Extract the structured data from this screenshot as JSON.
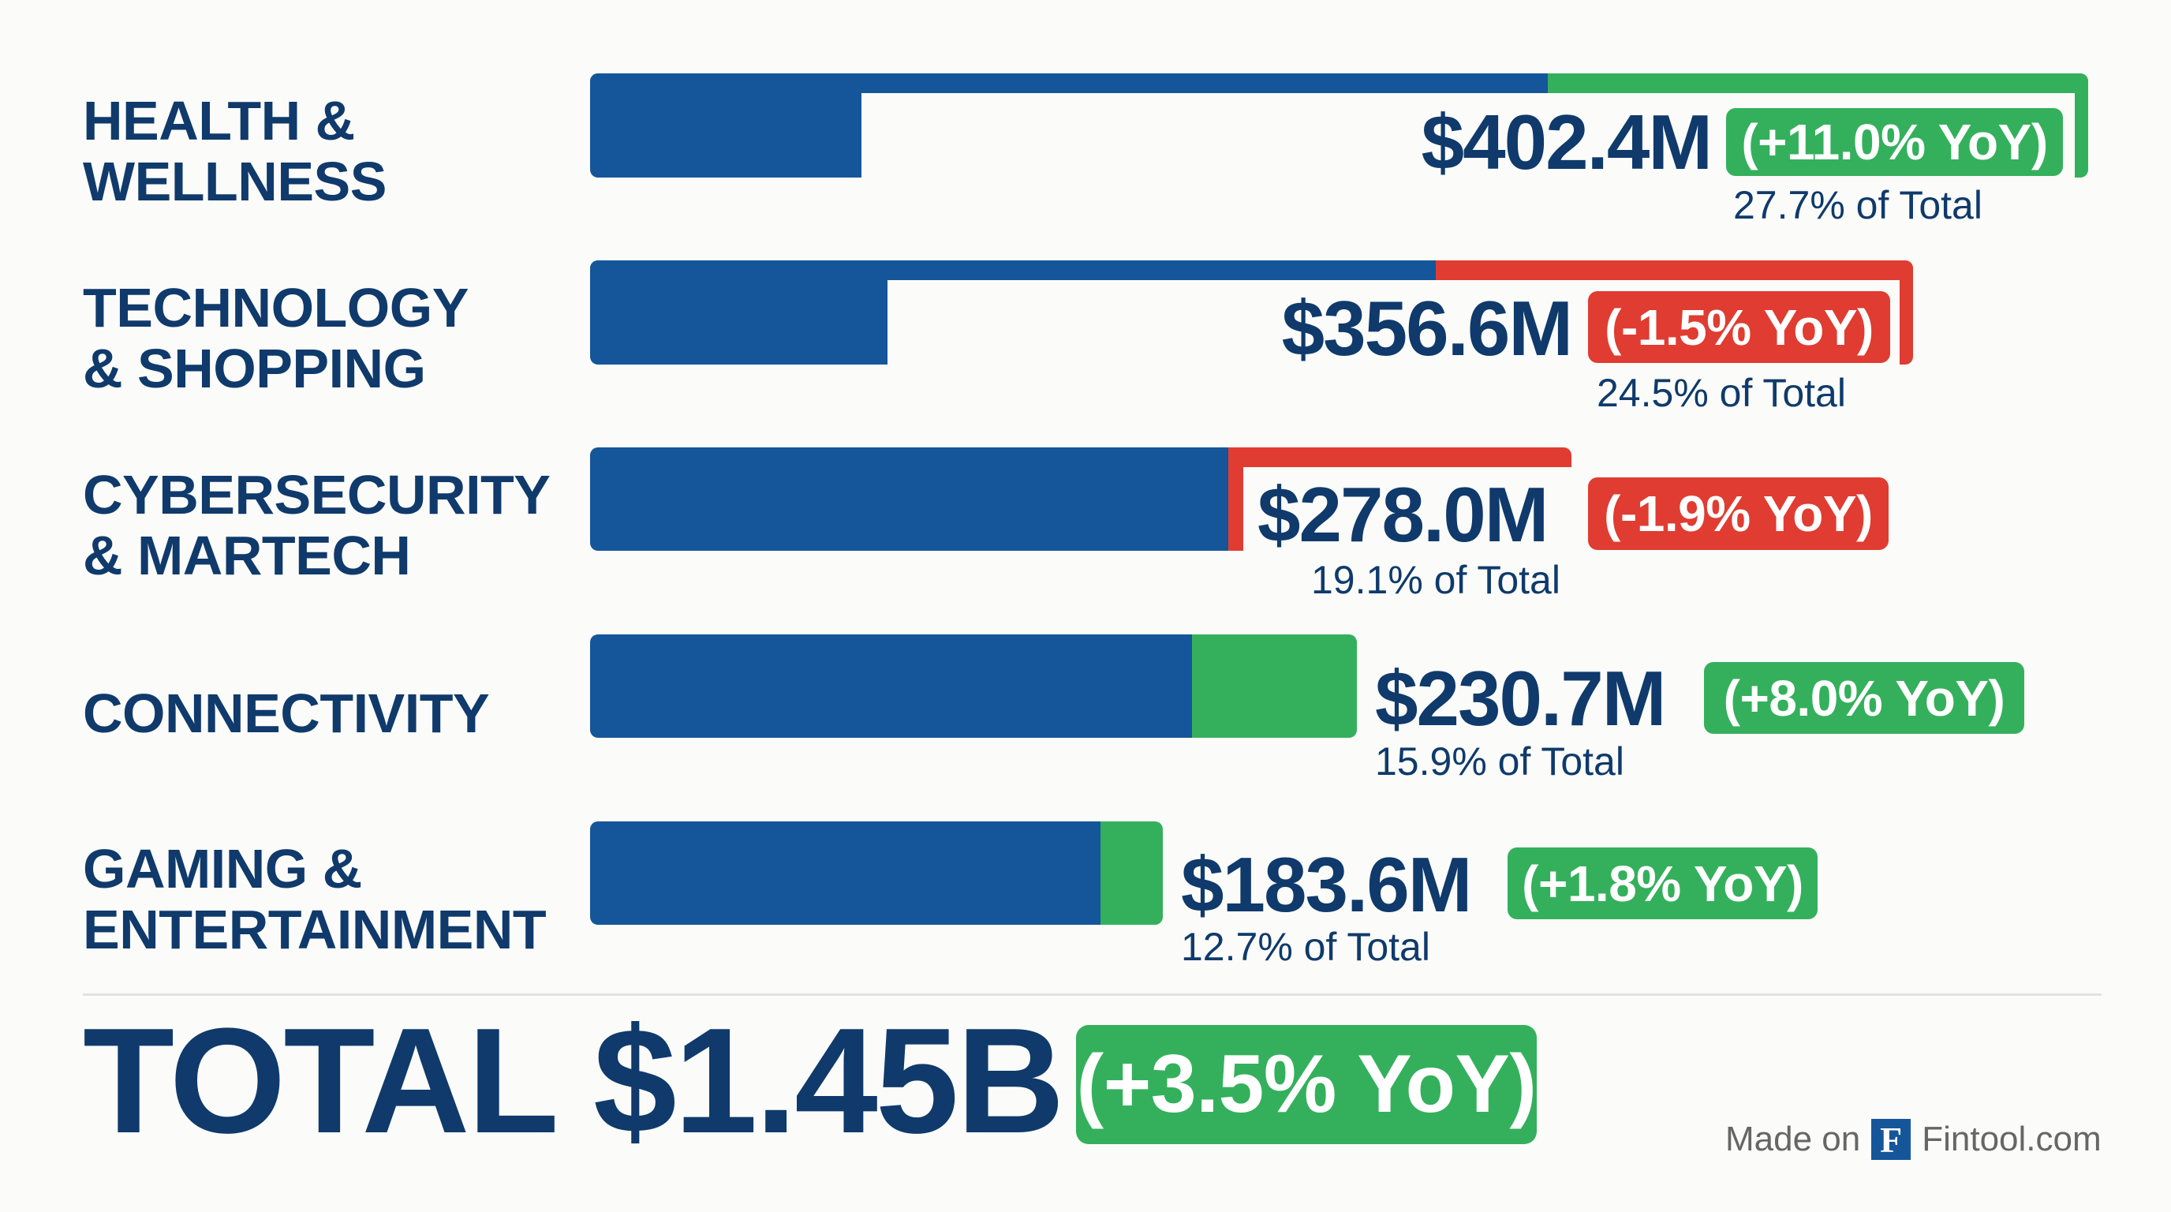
{
  "colors": {
    "bar": "#15569a",
    "positive": "#34b05c",
    "negative": "#e03c31",
    "text": "#0f3a6b"
  },
  "chart_data": {
    "type": "bar",
    "orientation": "horizontal",
    "categories": [
      "HEALTH &\nWELLNESS",
      "TECHNOLOGY\n& SHOPPING",
      "CYBERSECURITY\n& MARTECH",
      "CONNECTIVITY",
      "GAMING &\nENTERTAINMENT"
    ],
    "values": [
      402.4,
      356.6,
      278.0,
      230.7,
      183.6
    ],
    "unit": "$M",
    "value_labels": [
      "$402.4M",
      "$356.6M",
      "$278.0M",
      "$230.7M",
      "$183.6M"
    ],
    "yoy_labels": [
      "(+11.0% YoY)",
      "(-1.5% YoY)",
      "(-1.9% YoY)",
      "(+8.0% YoY)",
      "(+1.8% YoY)"
    ],
    "yoy": [
      11.0,
      -1.5,
      -1.9,
      8.0,
      1.8
    ],
    "share_labels": [
      "27.7% of Total",
      "24.5% of Total",
      "19.1% of Total",
      "15.9% of Total",
      "12.7% of Total"
    ],
    "share": [
      27.7,
      24.5,
      19.1,
      15.9,
      12.7
    ]
  },
  "total": {
    "label": "TOTAL $1.45B",
    "yoy": "(+3.5% YoY)"
  },
  "footer": {
    "made_on": "Made on",
    "logo_letter": "F",
    "site": "Fintool.com"
  }
}
